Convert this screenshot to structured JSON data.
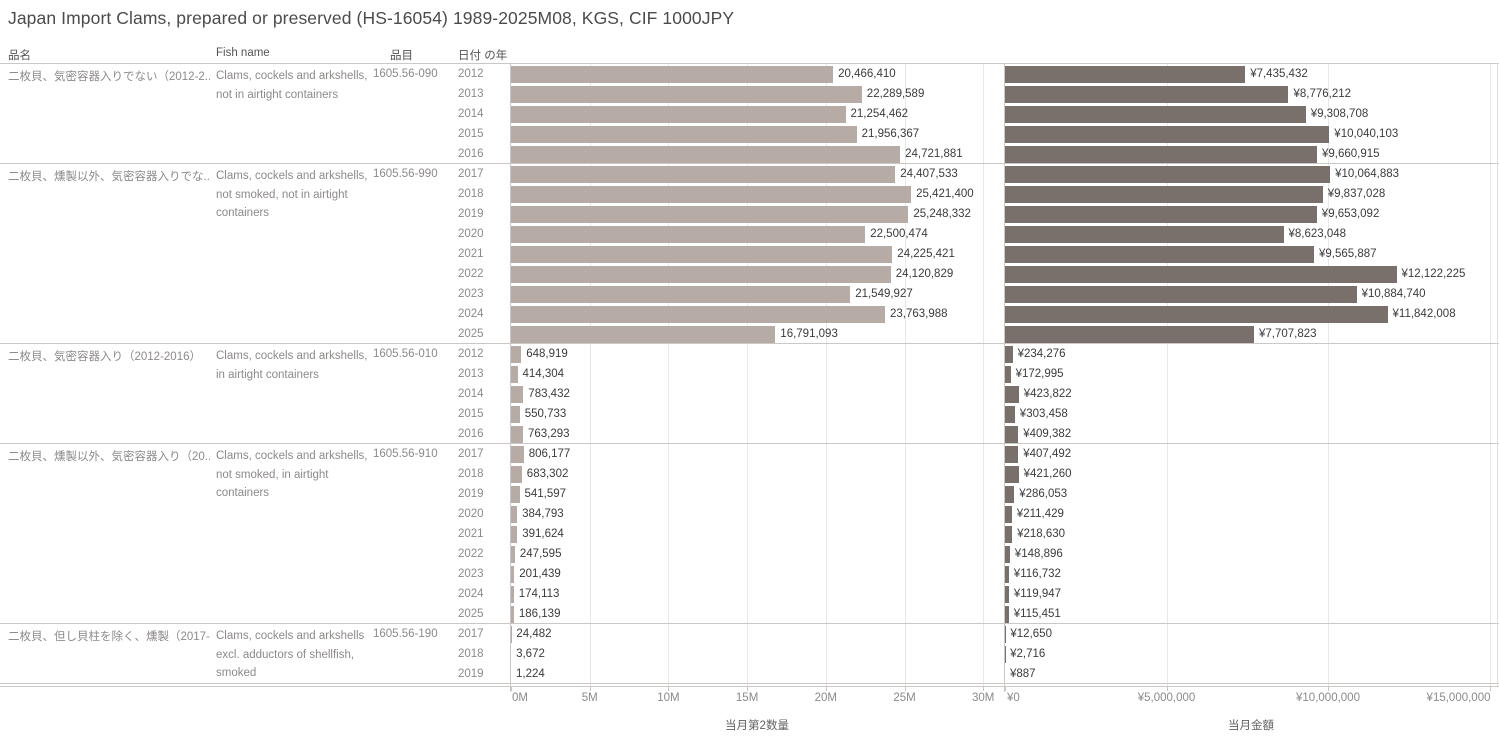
{
  "title": "Japan Import Clams, prepared or preserved (HS-16054) 1989-2025M08, KGS, CIF 1000JPY",
  "columns": {
    "name": "品名",
    "fish": "Fish name",
    "code": "品目",
    "year": "日付 の年"
  },
  "colors": {
    "qty_bar": "#b7aca5",
    "amt_bar": "#79706b"
  },
  "chart_data": {
    "type": "bar",
    "orientation": "horizontal",
    "grid": true,
    "panels": [
      {
        "field": "qty",
        "axis_title": "当月第2数量",
        "ticks": [
          {
            "label": "0M",
            "value": 0
          },
          {
            "label": "5M",
            "value": 5000000
          },
          {
            "label": "10M",
            "value": 10000000
          },
          {
            "label": "15M",
            "value": 15000000
          },
          {
            "label": "20M",
            "value": 20000000
          },
          {
            "label": "25M",
            "value": 25000000
          },
          {
            "label": "30M",
            "value": 30000000
          }
        ],
        "axis_range": [
          0,
          31300000
        ]
      },
      {
        "field": "amt",
        "axis_title": "当月金額",
        "ticks": [
          {
            "label": "¥0",
            "value": 0
          },
          {
            "label": "¥5,000,000",
            "value": 5000000
          },
          {
            "label": "¥10,000,000",
            "value": 10000000
          },
          {
            "label": "¥15,000,000",
            "value": 15000000
          }
        ],
        "axis_range": [
          0,
          15250000
        ]
      }
    ],
    "groups": [
      {
        "name": "二枚貝、気密容器入りでない（2012-2..",
        "fish": "Clams, cockels and arkshells, not in airtight containers",
        "code": "1605.56-090",
        "rows": [
          {
            "year": "2012",
            "qty": 20466410,
            "qty_label": "20,466,410",
            "amt": 7435432,
            "amt_label": "¥7,435,432"
          },
          {
            "year": "2013",
            "qty": 22289589,
            "qty_label": "22,289,589",
            "amt": 8776212,
            "amt_label": "¥8,776,212"
          },
          {
            "year": "2014",
            "qty": 21254462,
            "qty_label": "21,254,462",
            "amt": 9308708,
            "amt_label": "¥9,308,708"
          },
          {
            "year": "2015",
            "qty": 21956367,
            "qty_label": "21,956,367",
            "amt": 10040103,
            "amt_label": "¥10,040,103"
          },
          {
            "year": "2016",
            "qty": 24721881,
            "qty_label": "24,721,881",
            "amt": 9660915,
            "amt_label": "¥9,660,915"
          }
        ]
      },
      {
        "name": "二枚貝、燻製以外、気密容器入りでな..",
        "fish": "Clams, cockels and arkshells, not smoked, not in airtight containers",
        "code": "1605.56-990",
        "rows": [
          {
            "year": "2017",
            "qty": 24407533,
            "qty_label": "24,407,533",
            "amt": 10064883,
            "amt_label": "¥10,064,883"
          },
          {
            "year": "2018",
            "qty": 25421400,
            "qty_label": "25,421,400",
            "amt": 9837028,
            "amt_label": "¥9,837,028"
          },
          {
            "year": "2019",
            "qty": 25248332,
            "qty_label": "25,248,332",
            "amt": 9653092,
            "amt_label": "¥9,653,092"
          },
          {
            "year": "2020",
            "qty": 22500474,
            "qty_label": "22,500,474",
            "amt": 8623048,
            "amt_label": "¥8,623,048"
          },
          {
            "year": "2021",
            "qty": 24225421,
            "qty_label": "24,225,421",
            "amt": 9565887,
            "amt_label": "¥9,565,887"
          },
          {
            "year": "2022",
            "qty": 24120829,
            "qty_label": "24,120,829",
            "amt": 12122225,
            "amt_label": "¥12,122,225"
          },
          {
            "year": "2023",
            "qty": 21549927,
            "qty_label": "21,549,927",
            "amt": 10884740,
            "amt_label": "¥10,884,740"
          },
          {
            "year": "2024",
            "qty": 23763988,
            "qty_label": "23,763,988",
            "amt": 11842008,
            "amt_label": "¥11,842,008"
          },
          {
            "year": "2025",
            "qty": 16791093,
            "qty_label": "16,791,093",
            "amt": 7707823,
            "amt_label": "¥7,707,823"
          }
        ]
      },
      {
        "name": "二枚貝、気密容器入り（2012-2016）",
        "fish": "Clams, cockels and arkshells, in airtight containers",
        "code": "1605.56-010",
        "rows": [
          {
            "year": "2012",
            "qty": 648919,
            "qty_label": "648,919",
            "amt": 234276,
            "amt_label": "¥234,276"
          },
          {
            "year": "2013",
            "qty": 414304,
            "qty_label": "414,304",
            "amt": 172995,
            "amt_label": "¥172,995"
          },
          {
            "year": "2014",
            "qty": 783432,
            "qty_label": "783,432",
            "amt": 423822,
            "amt_label": "¥423,822"
          },
          {
            "year": "2015",
            "qty": 550733,
            "qty_label": "550,733",
            "amt": 303458,
            "amt_label": "¥303,458"
          },
          {
            "year": "2016",
            "qty": 763293,
            "qty_label": "763,293",
            "amt": 409382,
            "amt_label": "¥409,382"
          }
        ]
      },
      {
        "name": "二枚貝、燻製以外、気密容器入り（20..",
        "fish": "Clams, cockels and arkshells, not smoked, in airtight containers",
        "code": "1605.56-910",
        "rows": [
          {
            "year": "2017",
            "qty": 806177,
            "qty_label": "806,177",
            "amt": 407492,
            "amt_label": "¥407,492"
          },
          {
            "year": "2018",
            "qty": 683302,
            "qty_label": "683,302",
            "amt": 421260,
            "amt_label": "¥421,260"
          },
          {
            "year": "2019",
            "qty": 541597,
            "qty_label": "541,597",
            "amt": 286053,
            "amt_label": "¥286,053"
          },
          {
            "year": "2020",
            "qty": 384793,
            "qty_label": "384,793",
            "amt": 211429,
            "amt_label": "¥211,429"
          },
          {
            "year": "2021",
            "qty": 391624,
            "qty_label": "391,624",
            "amt": 218630,
            "amt_label": "¥218,630"
          },
          {
            "year": "2022",
            "qty": 247595,
            "qty_label": "247,595",
            "amt": 148896,
            "amt_label": "¥148,896"
          },
          {
            "year": "2023",
            "qty": 201439,
            "qty_label": "201,439",
            "amt": 116732,
            "amt_label": "¥116,732"
          },
          {
            "year": "2024",
            "qty": 174113,
            "qty_label": "174,113",
            "amt": 119947,
            "amt_label": "¥119,947"
          },
          {
            "year": "2025",
            "qty": 186139,
            "qty_label": "186,139",
            "amt": 115451,
            "amt_label": "¥115,451"
          }
        ]
      },
      {
        "name": "二枚貝、但し貝柱を除く、燻製（2017-..",
        "fish": "Clams, cockels and arkshells excl. adductors of shellfish, smoked",
        "code": "1605.56-190",
        "rows": [
          {
            "year": "2017",
            "qty": 24482,
            "qty_label": "24,482",
            "amt": 12650,
            "amt_label": "¥12,650"
          },
          {
            "year": "2018",
            "qty": 3672,
            "qty_label": "3,672",
            "amt": 2716,
            "amt_label": "¥2,716"
          },
          {
            "year": "2019",
            "qty": 1224,
            "qty_label": "1,224",
            "amt": 887,
            "amt_label": "¥887"
          }
        ]
      }
    ]
  }
}
